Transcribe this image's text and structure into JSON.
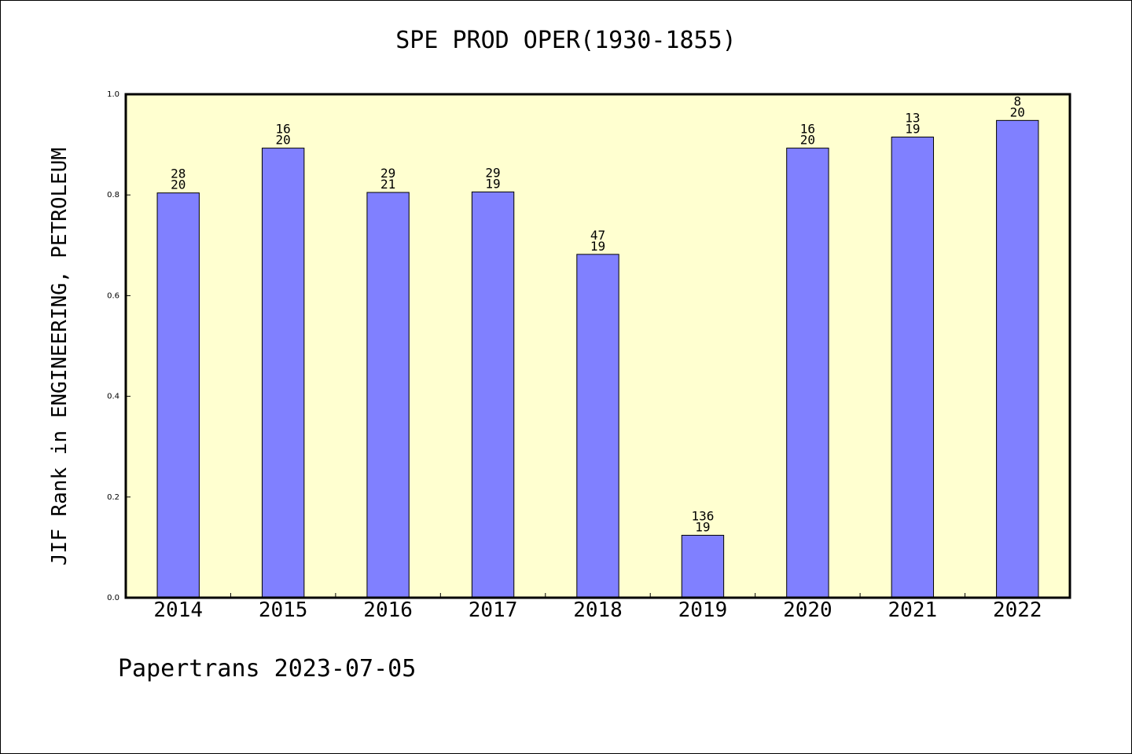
{
  "title": "SPE PROD OPER(1930-1855)",
  "footer": "Papertrans 2023-07-05",
  "colors": {
    "plot_background": "#ffffd0",
    "bar_fill": "#8080ff",
    "frame": "#000000"
  },
  "chart_data": {
    "type": "bar",
    "title": "SPE PROD OPER(1930-1855)",
    "xlabel": "",
    "ylabel": "JIF Rank in ENGINEERING, PETROLEUM",
    "ylim": [
      0,
      1.0
    ],
    "yticks": [
      "0.0",
      "0.2",
      "0.4",
      "0.6",
      "0.8",
      "1.0"
    ],
    "grid": false,
    "categories": [
      "2014",
      "2015",
      "2016",
      "2017",
      "2018",
      "2019",
      "2020",
      "2021",
      "2022"
    ],
    "values": [
      0.804,
      0.893,
      0.805,
      0.806,
      0.682,
      0.124,
      0.893,
      0.915,
      0.948
    ],
    "bar_labels": [
      [
        "28",
        "20"
      ],
      [
        "16",
        "20"
      ],
      [
        "29",
        "21"
      ],
      [
        "29",
        "19"
      ],
      [
        "47",
        "19"
      ],
      [
        "136",
        "19"
      ],
      [
        "16",
        "20"
      ],
      [
        "13",
        "19"
      ],
      [
        "8",
        "20"
      ]
    ]
  }
}
